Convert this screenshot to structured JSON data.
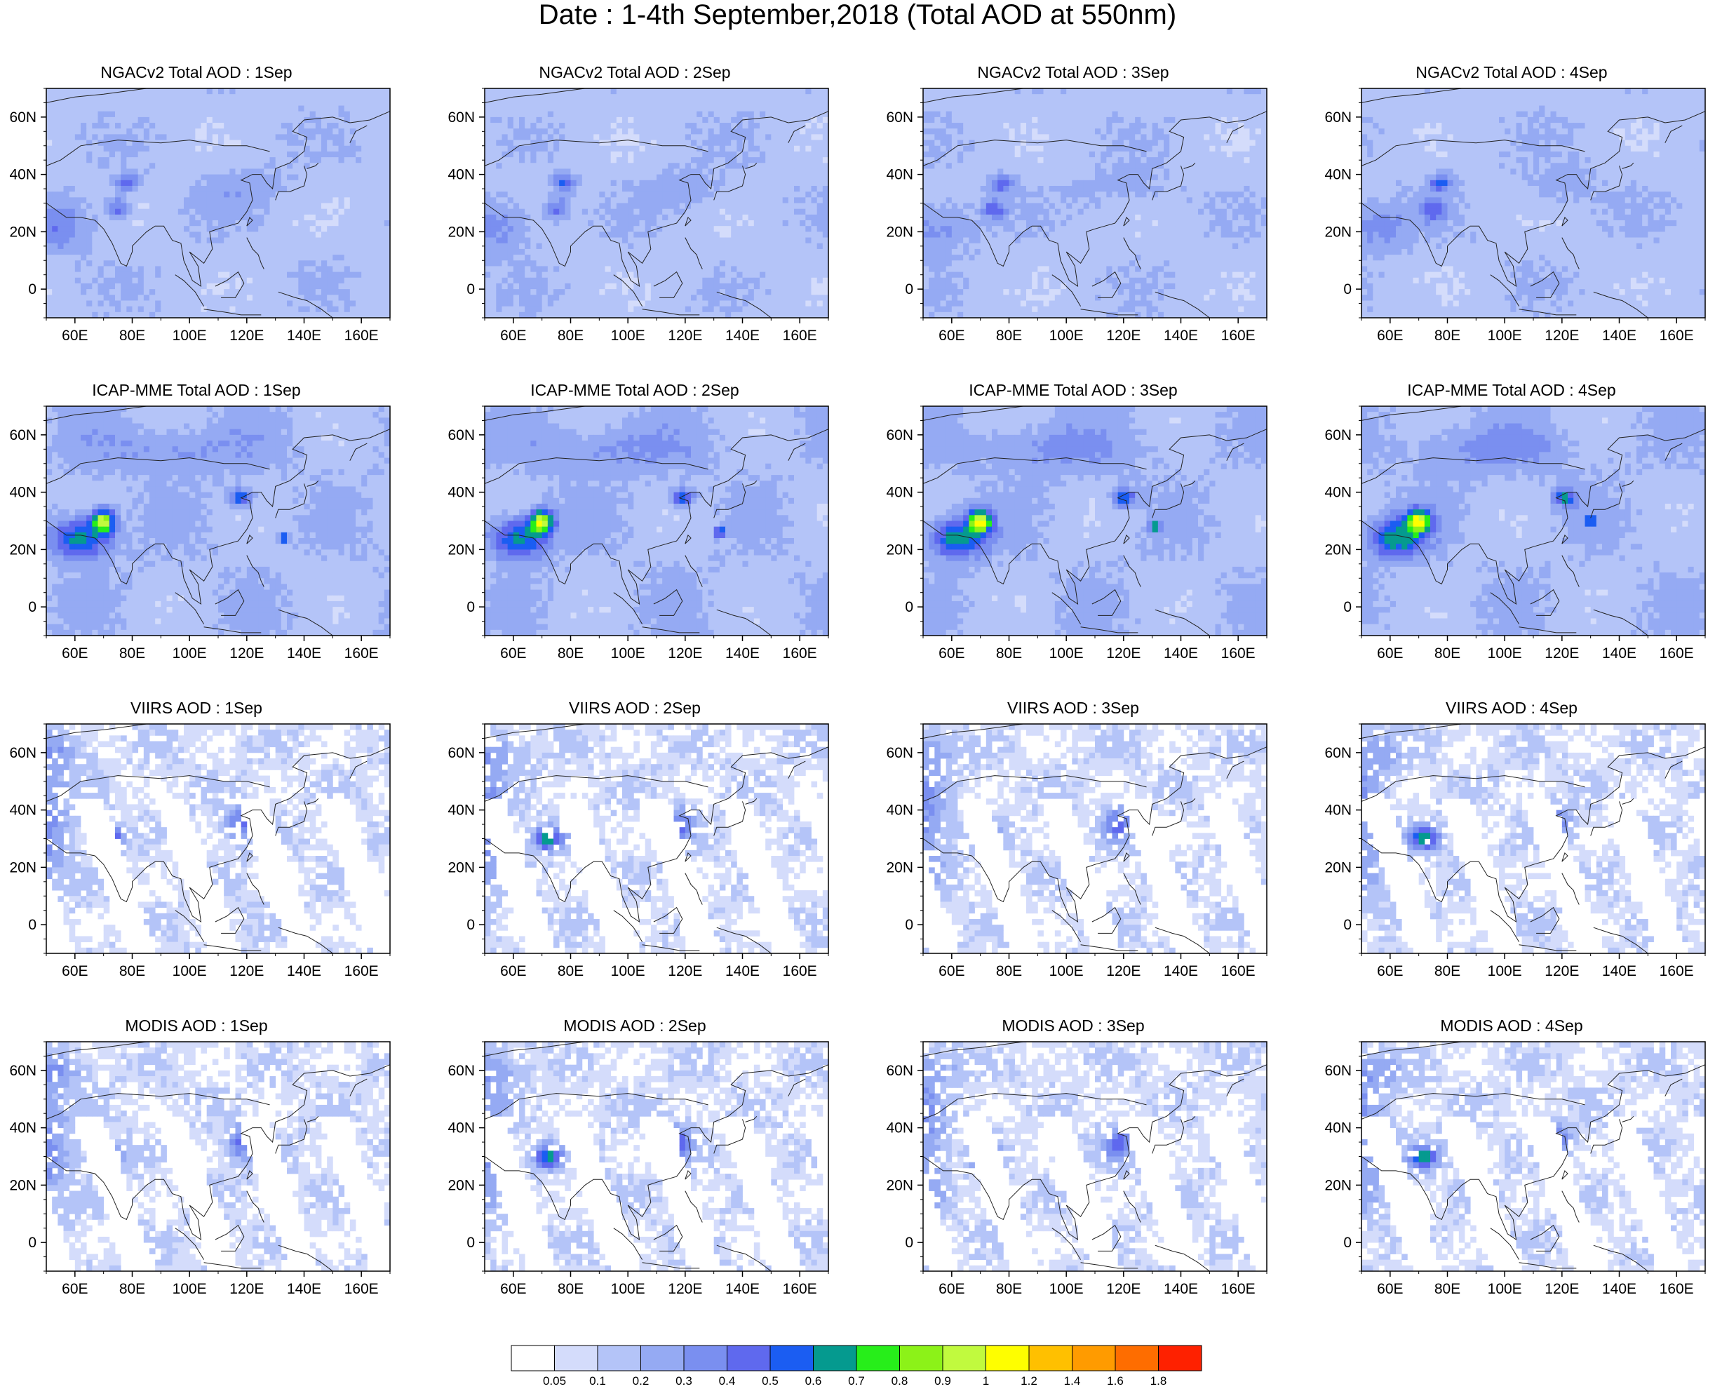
{
  "figure": {
    "title": "Date : 1-4th September,2018 (Total AOD at 550nm)"
  },
  "map_axes": {
    "lon_ticks": [
      "60E",
      "80E",
      "100E",
      "120E",
      "140E",
      "160E"
    ],
    "lat_ticks": [
      "60N",
      "40N",
      "20N",
      "0"
    ],
    "lon_range_deg": [
      50,
      170
    ],
    "lat_range_deg": [
      -10,
      70
    ]
  },
  "panels": [
    {
      "title": "NGACv2 Total AOD : 1Sep"
    },
    {
      "title": "NGACv2 Total AOD : 2Sep"
    },
    {
      "title": "NGACv2 Total AOD : 3Sep"
    },
    {
      "title": "NGACv2 Total AOD : 4Sep"
    },
    {
      "title": "ICAP-MME Total AOD : 1Sep"
    },
    {
      "title": "ICAP-MME Total AOD : 2Sep"
    },
    {
      "title": "ICAP-MME Total AOD : 3Sep"
    },
    {
      "title": "ICAP-MME Total AOD : 4Sep"
    },
    {
      "title": "VIIRS AOD : 1Sep"
    },
    {
      "title": "VIIRS AOD : 2Sep"
    },
    {
      "title": "VIIRS AOD : 3Sep"
    },
    {
      "title": "VIIRS AOD : 4Sep"
    },
    {
      "title": "MODIS AOD : 1Sep"
    },
    {
      "title": "MODIS AOD : 2Sep"
    },
    {
      "title": "MODIS AOD : 3Sep"
    },
    {
      "title": "MODIS AOD : 4Sep"
    }
  ],
  "colorbar": {
    "labels": [
      "0.05",
      "0.1",
      "0.2",
      "0.3",
      "0.4",
      "0.5",
      "0.6",
      "0.7",
      "0.8",
      "0.9",
      "1",
      "1.2",
      "1.4",
      "1.6",
      "1.8"
    ],
    "colors": [
      "#ffffff",
      "#d4dcfb",
      "#b4c4f8",
      "#95aaf3",
      "#7a8ff0",
      "#5f69ee",
      "#1b5df2",
      "#059a8f",
      "#27ee1a",
      "#8cf218",
      "#c1fa3e",
      "#fefe00",
      "#ffc000",
      "#ff9b00",
      "#fe6d00",
      "#fe2100"
    ]
  }
}
